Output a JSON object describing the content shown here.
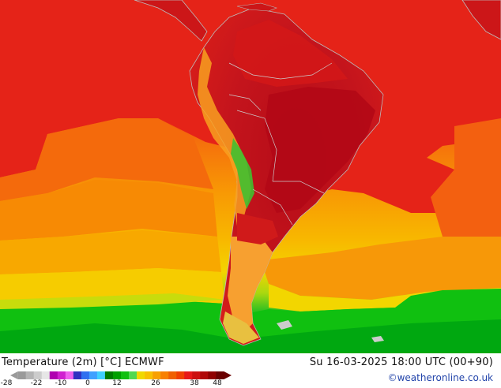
{
  "footer": {
    "title": "Temperature (2m) [°C] ECMWF",
    "valid_time": "Su 16-03-2025 18:00 UTC (00+90)",
    "credit": "©weatheronline.co.uk"
  },
  "legend": {
    "ticks": [
      "-28",
      "-22",
      "-10",
      "0",
      "12",
      "26",
      "38",
      "48"
    ],
    "colors": [
      "#9a9a9a",
      "#b4b4b4",
      "#cccccc",
      "#e6e6e6",
      "#b000b0",
      "#d020d0",
      "#ee60ee",
      "#3030c0",
      "#3070f0",
      "#40a0ff",
      "#40d0ff",
      "#007a00",
      "#00a000",
      "#10c010",
      "#50d850",
      "#f0d800",
      "#f8c000",
      "#f8a000",
      "#f88000",
      "#f06000",
      "#f04000",
      "#e81818",
      "#cc1010",
      "#b00808",
      "#900000",
      "#6a0000"
    ]
  },
  "map": {
    "colors": {
      "ocean_north": "#e62117",
      "land_hot": "#c2121c",
      "land_core": "#b00a18",
      "ocean_warm": "#f5590c",
      "ocean_mid": "#f8a000",
      "ocean_cool": "#f8c400",
      "ocean_cold": "#f0e000",
      "southern_green": "#10c010",
      "southern_green_deep": "#00a800",
      "coastline": "#bbbbbb"
    }
  }
}
